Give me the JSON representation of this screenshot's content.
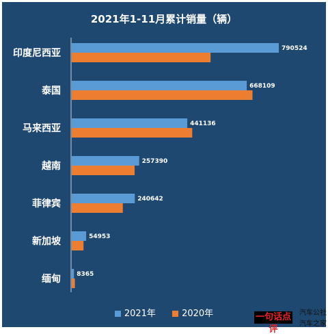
{
  "chart_data": {
    "type": "bar",
    "orientation": "horizontal",
    "title": "2021年1-11月累计销量（辆）",
    "categories": [
      "印度尼西亚",
      "泰国",
      "马来西亚",
      "越南",
      "菲律宾",
      "新加坡",
      "缅甸"
    ],
    "series": [
      {
        "name": "2021年",
        "color": "#5b9bd5",
        "values": [
          790524,
          668109,
          441136,
          257390,
          240642,
          54953,
          8365
        ],
        "data_labels": [
          "790524",
          "668109",
          "441136",
          "257390",
          "240642",
          "54953",
          "8365"
        ]
      },
      {
        "name": "2020年",
        "color": "#ed7d31",
        "values": [
          530000,
          690000,
          460000,
          240000,
          195000,
          45000,
          12000
        ]
      }
    ],
    "xlim": [
      0,
      900000
    ],
    "grid": false,
    "legend_position": "bottom"
  },
  "watermark": {
    "tag": "一句话点评",
    "line1": "汽车公社",
    "line2": "汽车之家"
  }
}
